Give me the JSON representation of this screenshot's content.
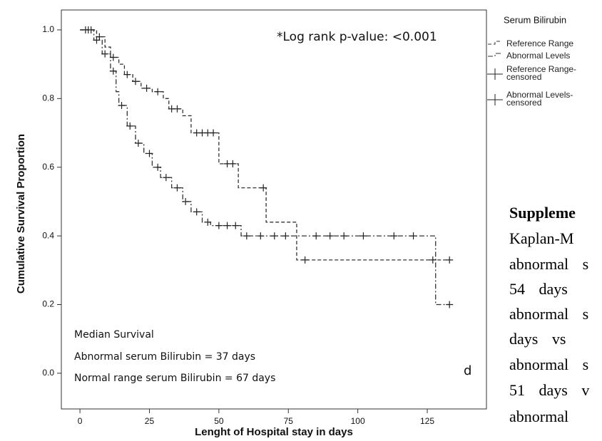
{
  "chart_data": {
    "type": "kaplan-meier",
    "xlabel": "Lenght of Hospital stay in days",
    "ylabel": "Cumulative Survival Proportion",
    "xlim": [
      -6.7,
      146.3
    ],
    "ylim": [
      -0.104,
      1.058
    ],
    "xticks": [
      0,
      25,
      50,
      75,
      100,
      125
    ],
    "yticks": [
      {
        "value": 0,
        "label": "0.0"
      },
      0.2,
      0.4,
      0.6,
      0.8,
      {
        "value": 1,
        "label": "1.0"
      }
    ],
    "legend_title": "Serum Bilirubin",
    "annotations": [
      "*Log rank p-value: <0.001",
      "Median Survival",
      "Abnormal serum Bilirubin = 37 days",
      "Normal range serum Bilirubin = 67 days",
      "d"
    ],
    "series": [
      {
        "name": "Reference Range",
        "style": "dashed",
        "color": "#333333",
        "x": [
          0,
          6,
          6,
          9,
          9,
          11,
          11,
          14,
          14,
          16,
          16,
          19,
          19,
          22,
          22,
          26,
          26,
          30,
          30,
          32,
          32,
          37,
          37,
          40,
          40,
          50,
          50,
          57,
          57,
          67,
          67,
          78,
          78,
          133
        ],
        "y": [
          1,
          1,
          0.98,
          0.98,
          0.95,
          0.95,
          0.92,
          0.92,
          0.9,
          0.9,
          0.87,
          0.87,
          0.85,
          0.85,
          0.83,
          0.83,
          0.82,
          0.82,
          0.8,
          0.8,
          0.77,
          0.77,
          0.75,
          0.75,
          0.7,
          0.7,
          0.61,
          0.61,
          0.54,
          0.54,
          0.44,
          0.44,
          0.33,
          0.33
        ]
      },
      {
        "name": "Abnormal Levels",
        "style": "dashdot",
        "color": "#333333",
        "x": [
          0,
          5,
          5,
          8,
          8,
          11,
          11,
          13,
          13,
          14,
          14,
          17,
          17,
          20,
          20,
          23,
          23,
          26,
          26,
          29,
          29,
          33,
          33,
          37,
          37,
          40,
          40,
          44,
          44,
          47,
          47,
          58,
          58,
          128,
          128,
          133
        ],
        "y": [
          1,
          1,
          0.97,
          0.97,
          0.93,
          0.93,
          0.88,
          0.88,
          0.82,
          0.82,
          0.78,
          0.78,
          0.72,
          0.72,
          0.67,
          0.67,
          0.64,
          0.64,
          0.6,
          0.6,
          0.57,
          0.57,
          0.54,
          0.54,
          0.5,
          0.5,
          0.47,
          0.47,
          0.44,
          0.44,
          0.43,
          0.43,
          0.4,
          0.4,
          0.2,
          0.2
        ]
      },
      {
        "name": "Reference Range-censored",
        "style": "censor",
        "color": "#222222",
        "x": [
          2,
          4,
          7,
          12,
          17,
          20,
          24,
          28,
          33,
          35,
          42,
          44,
          46,
          48,
          53,
          55,
          66,
          81,
          127,
          133
        ],
        "y": [
          1,
          1,
          0.98,
          0.92,
          0.87,
          0.85,
          0.83,
          0.82,
          0.77,
          0.77,
          0.7,
          0.7,
          0.7,
          0.7,
          0.61,
          0.61,
          0.54,
          0.33,
          0.33,
          0.33
        ]
      },
      {
        "name": "Abnormal Levels-censored",
        "style": "censor",
        "color": "#222222",
        "x": [
          3,
          6,
          9,
          12,
          15,
          18,
          21,
          25,
          28,
          31,
          35,
          38,
          42,
          46,
          50,
          53,
          56,
          60,
          65,
          70,
          74,
          85,
          90,
          95,
          102,
          113,
          120,
          133
        ],
        "y": [
          1,
          0.97,
          0.93,
          0.88,
          0.78,
          0.72,
          0.67,
          0.64,
          0.6,
          0.57,
          0.54,
          0.5,
          0.47,
          0.44,
          0.43,
          0.43,
          0.43,
          0.4,
          0.4,
          0.4,
          0.4,
          0.4,
          0.4,
          0.4,
          0.4,
          0.4,
          0.4,
          0.2
        ]
      }
    ]
  },
  "side_text": {
    "heading": "Suppleme",
    "lines": [
      "Kaplan-M",
      "abnormal s",
      "54 days",
      "abnormal s",
      "days vs",
      "abnormal s",
      "51 days v",
      "abnormal"
    ]
  }
}
